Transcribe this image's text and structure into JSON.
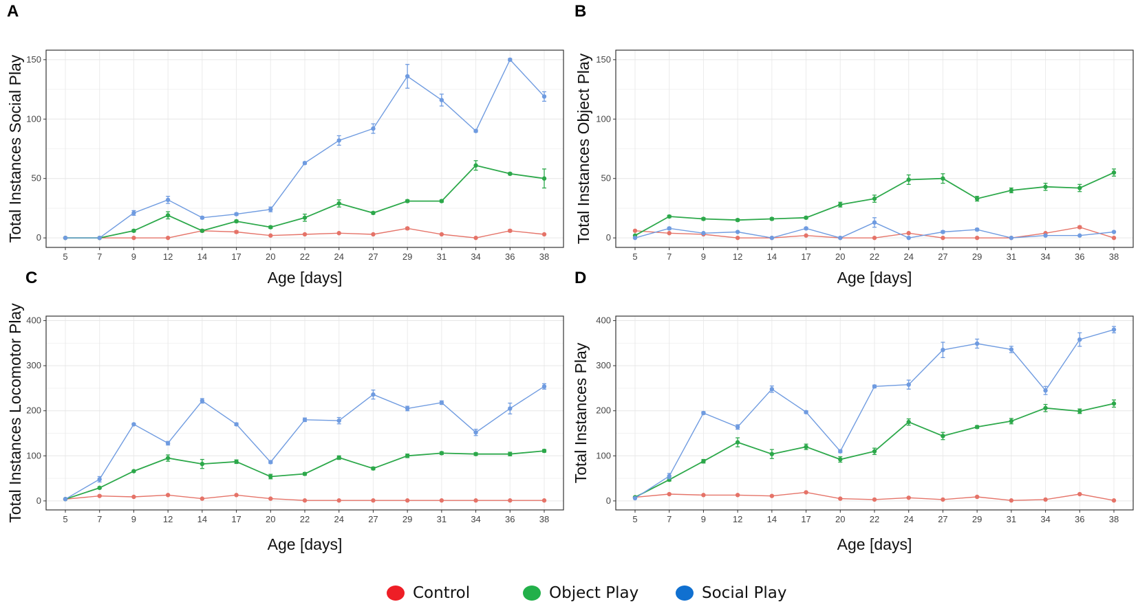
{
  "colors": {
    "control": "#e57368",
    "object": "#2ca84a",
    "social": "#6f9be0"
  },
  "legend": {
    "control": "Control",
    "object": "Object Play",
    "social": "Social Play"
  },
  "chart_data": [
    {
      "type": "line",
      "panel": "A",
      "ylabel": "Total Instances Social Play",
      "xlabel": "Age [days]",
      "categories": [
        "5",
        "7",
        "9",
        "12",
        "14",
        "17",
        "20",
        "22",
        "24",
        "27",
        "29",
        "31",
        "34",
        "36",
        "38"
      ],
      "ylim": [
        -8,
        158
      ],
      "yticks": [
        0,
        50,
        100,
        150
      ],
      "grid": true,
      "series": [
        {
          "name": "Control",
          "key": "control",
          "values": [
            0,
            0,
            0,
            0,
            6,
            5,
            2,
            3,
            4,
            3,
            8,
            3,
            0,
            6,
            3
          ],
          "err": [
            0,
            0,
            0,
            0,
            1,
            1,
            0,
            0,
            0,
            0,
            1,
            0,
            0,
            1,
            0
          ]
        },
        {
          "name": "Object Play",
          "key": "object",
          "values": [
            0,
            0,
            6,
            19,
            6,
            14,
            9,
            17,
            29,
            21,
            31,
            31,
            61,
            54,
            50
          ],
          "err": [
            0,
            0,
            1,
            3,
            1,
            1,
            1,
            3,
            3,
            1,
            1,
            1,
            4,
            1,
            8
          ]
        },
        {
          "name": "Social Play",
          "key": "social",
          "values": [
            0,
            0,
            21,
            32,
            17,
            20,
            24,
            63,
            82,
            92,
            136,
            116,
            90,
            150,
            119
          ],
          "err": [
            0,
            0,
            2,
            3,
            1,
            1,
            2,
            1,
            4,
            4,
            10,
            5,
            1,
            1,
            4
          ]
        }
      ]
    },
    {
      "type": "line",
      "panel": "B",
      "ylabel": "Total Instances Object Play",
      "xlabel": "Age [days]",
      "categories": [
        "5",
        "7",
        "9",
        "12",
        "14",
        "17",
        "20",
        "22",
        "24",
        "27",
        "29",
        "31",
        "34",
        "36",
        "38"
      ],
      "ylim": [
        -8,
        158
      ],
      "yticks": [
        0,
        50,
        100,
        150
      ],
      "grid": true,
      "series": [
        {
          "name": "Control",
          "key": "control",
          "values": [
            6,
            4,
            3,
            0,
            0,
            2,
            0,
            0,
            4,
            0,
            0,
            0,
            4,
            9,
            0
          ],
          "err": [
            0,
            0,
            0,
            0,
            0,
            0,
            0,
            0,
            0,
            0,
            0,
            0,
            0,
            1,
            0
          ]
        },
        {
          "name": "Object Play",
          "key": "object",
          "values": [
            2,
            18,
            16,
            15,
            16,
            17,
            28,
            33,
            49,
            50,
            33,
            40,
            43,
            42,
            55
          ],
          "err": [
            0,
            1,
            1,
            1,
            1,
            1,
            2,
            3,
            4,
            4,
            2,
            2,
            3,
            3,
            3
          ]
        },
        {
          "name": "Social Play",
          "key": "social",
          "values": [
            0,
            8,
            4,
            5,
            0,
            8,
            0,
            13,
            0,
            5,
            7,
            0,
            2,
            2,
            5
          ],
          "err": [
            0,
            1,
            0,
            0,
            0,
            1,
            0,
            4,
            0,
            1,
            1,
            0,
            0,
            0,
            0
          ]
        }
      ]
    },
    {
      "type": "line",
      "panel": "C",
      "ylabel": "Total Instances Locomotor Play",
      "xlabel": "Age [days]",
      "categories": [
        "5",
        "7",
        "9",
        "12",
        "14",
        "17",
        "20",
        "22",
        "24",
        "27",
        "29",
        "31",
        "34",
        "36",
        "38"
      ],
      "ylim": [
        -20,
        410
      ],
      "yticks": [
        0,
        100,
        200,
        300,
        400
      ],
      "grid": true,
      "series": [
        {
          "name": "Control",
          "key": "control",
          "values": [
            4,
            11,
            9,
            13,
            5,
            13,
            5,
            1,
            1,
            1,
            1,
            1,
            1,
            1,
            1
          ],
          "err": [
            0,
            1,
            1,
            1,
            1,
            1,
            1,
            0,
            0,
            0,
            0,
            0,
            0,
            0,
            0
          ]
        },
        {
          "name": "Object Play",
          "key": "object",
          "values": [
            4,
            29,
            66,
            95,
            82,
            87,
            54,
            60,
            96,
            72,
            100,
            106,
            104,
            104,
            111
          ],
          "err": [
            0,
            2,
            2,
            7,
            10,
            4,
            5,
            3,
            4,
            3,
            4,
            3,
            3,
            4,
            3
          ]
        },
        {
          "name": "Social Play",
          "key": "social",
          "values": [
            4,
            48,
            170,
            128,
            222,
            170,
            86,
            180,
            178,
            236,
            205,
            218,
            152,
            205,
            254
          ],
          "err": [
            0,
            6,
            2,
            4,
            5,
            3,
            3,
            4,
            7,
            10,
            5,
            4,
            7,
            12,
            6
          ]
        }
      ]
    },
    {
      "type": "line",
      "panel": "D",
      "ylabel": "Total Instances Play",
      "xlabel": "Age [days]",
      "categories": [
        "5",
        "7",
        "9",
        "12",
        "14",
        "17",
        "20",
        "22",
        "24",
        "27",
        "29",
        "31",
        "34",
        "36",
        "38"
      ],
      "ylim": [
        -20,
        410
      ],
      "yticks": [
        0,
        100,
        200,
        300,
        400
      ],
      "grid": true,
      "series": [
        {
          "name": "Control",
          "key": "control",
          "values": [
            8,
            15,
            13,
            13,
            11,
            19,
            5,
            3,
            7,
            3,
            9,
            1,
            3,
            15,
            1
          ],
          "err": [
            0,
            1,
            1,
            1,
            1,
            1,
            1,
            0,
            1,
            0,
            1,
            0,
            0,
            1,
            0
          ]
        },
        {
          "name": "Object Play",
          "key": "object",
          "values": [
            8,
            47,
            88,
            130,
            104,
            120,
            92,
            110,
            175,
            144,
            164,
            177,
            206,
            199,
            216
          ],
          "err": [
            0,
            3,
            4,
            10,
            10,
            6,
            6,
            7,
            7,
            8,
            3,
            6,
            8,
            5,
            8
          ]
        },
        {
          "name": "Social Play",
          "key": "social",
          "values": [
            6,
            55,
            195,
            164,
            248,
            197,
            110,
            254,
            258,
            335,
            349,
            336,
            245,
            358,
            380
          ],
          "err": [
            0,
            6,
            3,
            5,
            7,
            3,
            3,
            3,
            10,
            17,
            10,
            7,
            9,
            15,
            7
          ]
        }
      ]
    }
  ]
}
